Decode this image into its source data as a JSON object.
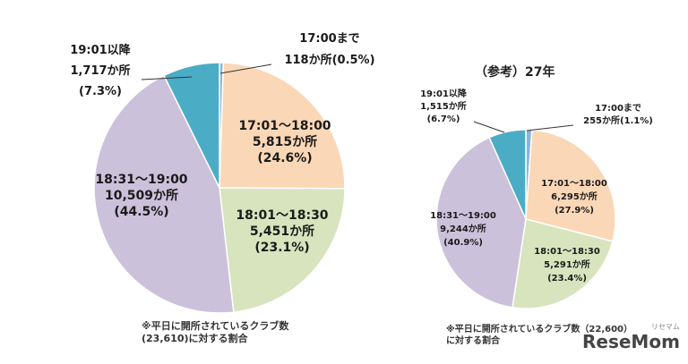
{
  "chart_data": [
    {
      "type": "pie",
      "title": "",
      "slices": [
        {
          "key": "s1700",
          "lines": [
            "17:00まで",
            "118か所(0.5%)"
          ],
          "percent": 0.5,
          "count": 118,
          "color": "#8EB3D9"
        },
        {
          "key": "s1800",
          "lines": [
            "17:01～18:00",
            "5,815か所",
            "(24.6%)"
          ],
          "percent": 24.6,
          "count": 5815,
          "color": "#FAD7B6"
        },
        {
          "key": "s1830",
          "lines": [
            "18:01～18:30",
            "5,451か所",
            "(23.1%)"
          ],
          "percent": 23.1,
          "count": 5451,
          "color": "#D7E4BD"
        },
        {
          "key": "s1900",
          "lines": [
            "18:31～19:00",
            "10,509か所",
            "(44.5%)"
          ],
          "percent": 44.5,
          "count": 10509,
          "color": "#CCC1DA"
        },
        {
          "key": "s1901",
          "lines": [
            "19:01以降",
            "1,717か所",
            "(7.3%)"
          ],
          "percent": 7.3,
          "count": 1717,
          "color": "#4BACC6"
        }
      ],
      "note": [
        "※平日に開所されているクラブ数",
        "(23,610)に対する割合"
      ]
    },
    {
      "type": "pie",
      "title": "（参考）27年",
      "slices": [
        {
          "key": "s1700",
          "lines": [
            "17:00まで",
            "255か所(1.1%)"
          ],
          "percent": 1.1,
          "count": 255,
          "color": "#8EB3D9"
        },
        {
          "key": "s1800",
          "lines": [
            "17:01～18:00",
            "6,295か所",
            "(27.9%)"
          ],
          "percent": 27.9,
          "count": 6295,
          "color": "#FAD7B6"
        },
        {
          "key": "s1830",
          "lines": [
            "18:01～18:30",
            "5,291か所",
            "(23.4%)"
          ],
          "percent": 23.4,
          "count": 5291,
          "color": "#D7E4BD"
        },
        {
          "key": "s1900",
          "lines": [
            "18:31～19:00",
            "9,244か所",
            "(40.9%)"
          ],
          "percent": 40.9,
          "count": 9244,
          "color": "#CCC1DA"
        },
        {
          "key": "s1901",
          "lines": [
            "19:01以降",
            "1,515か所",
            "(6.7%)"
          ],
          "percent": 6.7,
          "count": 1515,
          "color": "#4BACC6"
        }
      ],
      "note": [
        "※平日に開所されているクラブ数（22,600）",
        "に対する割合"
      ]
    }
  ],
  "brand": {
    "name": "ReseMom",
    "sub": "リセマム"
  }
}
